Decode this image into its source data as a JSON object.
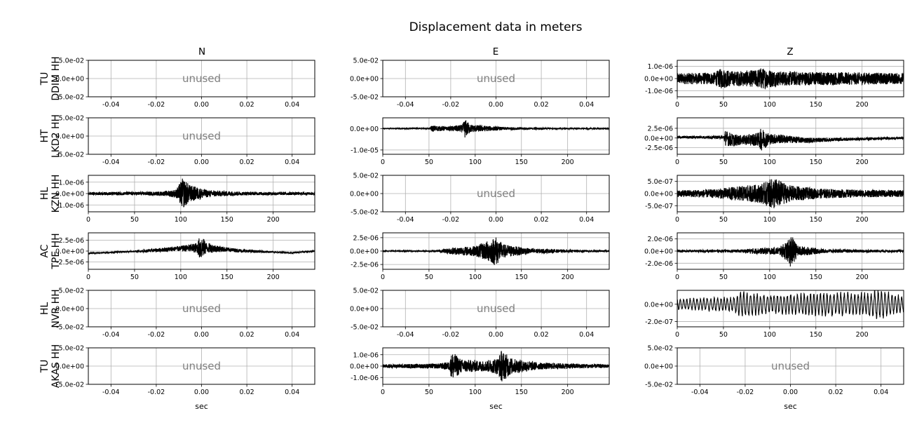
{
  "title": "Displacement data in meters",
  "columns": [
    "N",
    "E",
    "Z"
  ],
  "xlabel": "sec",
  "unused_label": "unused",
  "colors": {
    "trace": "#000000",
    "grid": "#b0b0b0",
    "unused_text": "#808080"
  },
  "chart_data": {
    "type": "line",
    "title": "Displacement data in meters",
    "grid": true,
    "rows": [
      {
        "network": "TU",
        "station": "DDIM HH"
      },
      {
        "network": "HT",
        "station": "LKD2 HH"
      },
      {
        "network": "HL",
        "station": "KZN HH"
      },
      {
        "network": "AC",
        "station": "TPE HH"
      },
      {
        "network": "HL",
        "station": "NVR HH"
      },
      {
        "network": "TU",
        "station": "AKAS HH"
      }
    ],
    "panels": [
      {
        "row": 0,
        "col": "N",
        "unused": true,
        "xlim": [
          -0.05,
          0.05
        ],
        "xticks": [
          "-0.04",
          "-0.02",
          "0.00",
          "0.02",
          "0.04"
        ],
        "ylim": [
          -0.05,
          0.05
        ],
        "yticks": [
          "5.0e-02",
          "0.0e+00",
          "-5.0e-02"
        ]
      },
      {
        "row": 0,
        "col": "E",
        "unused": true,
        "xlim": [
          -0.05,
          0.05
        ],
        "xticks": [
          "-0.04",
          "-0.02",
          "0.00",
          "0.02",
          "0.04"
        ],
        "ylim": [
          -0.05,
          0.05
        ],
        "yticks": [
          "5.0e-02",
          "0.0e+00",
          "-5.0e-02"
        ]
      },
      {
        "row": 0,
        "col": "Z",
        "unused": false,
        "xlim": [
          0,
          245
        ],
        "xticks": [
          "0",
          "50",
          "100",
          "150",
          "200"
        ],
        "ylim": [
          -1.5e-06,
          1.5e-06
        ],
        "yticks": [
          "1.0e-06",
          "0.0e+00",
          "-1.0e-06"
        ],
        "envelope": [
          [
            0,
            0.45
          ],
          [
            40,
            0.5
          ],
          [
            48,
            0.85
          ],
          [
            60,
            0.6
          ],
          [
            85,
            0.7
          ],
          [
            90,
            0.9
          ],
          [
            110,
            0.6
          ],
          [
            150,
            0.55
          ],
          [
            200,
            0.5
          ],
          [
            245,
            0.45
          ]
        ],
        "amplitude": 1e-06,
        "trend": []
      },
      {
        "row": 1,
        "col": "N",
        "unused": true,
        "xlim": [
          -0.05,
          0.05
        ],
        "xticks": [
          "-0.04",
          "-0.02",
          "0.00",
          "0.02",
          "0.04"
        ],
        "ylim": [
          -0.05,
          0.05
        ],
        "yticks": [
          "5.0e-02",
          "0.0e+00",
          "-5.0e-02"
        ]
      },
      {
        "row": 1,
        "col": "E",
        "unused": false,
        "xlim": [
          0,
          245
        ],
        "xticks": [
          "0",
          "50",
          "100",
          "150",
          "200"
        ],
        "ylim": [
          -1.2e-05,
          5e-06
        ],
        "yticks": [
          "0.0e+00",
          "-1.0e-05"
        ],
        "envelope": [
          [
            0,
            0.03
          ],
          [
            51,
            0.04
          ],
          [
            53,
            0.25
          ],
          [
            70,
            0.15
          ],
          [
            86,
            0.3
          ],
          [
            89,
            0.75
          ],
          [
            95,
            0.3
          ],
          [
            130,
            0.12
          ],
          [
            180,
            0.06
          ],
          [
            245,
            0.04
          ]
        ],
        "amplitude": 6e-06,
        "trend": []
      },
      {
        "row": 1,
        "col": "Z",
        "unused": false,
        "xlim": [
          0,
          245
        ],
        "xticks": [
          "0",
          "50",
          "100",
          "150",
          "200"
        ],
        "ylim": [
          -4.2e-06,
          5.2e-06
        ],
        "yticks": [
          "2.5e-06",
          "0.0e+00",
          "-2.5e-06"
        ],
        "envelope": [
          [
            0,
            0.08
          ],
          [
            50,
            0.1
          ],
          [
            52,
            0.5
          ],
          [
            70,
            0.3
          ],
          [
            88,
            0.45
          ],
          [
            91,
            0.75
          ],
          [
            100,
            0.35
          ],
          [
            130,
            0.2
          ],
          [
            170,
            0.1
          ],
          [
            245,
            0.07
          ]
        ],
        "amplitude": 4e-06,
        "trend": [
          [
            0,
            2e-07
          ],
          [
            50,
            2e-07
          ],
          [
            60,
            -6e-07
          ],
          [
            110,
            -2e-07
          ],
          [
            140,
            -6e-07
          ],
          [
            245,
            0
          ]
        ]
      },
      {
        "row": 2,
        "col": "N",
        "unused": false,
        "xlim": [
          0,
          245
        ],
        "xticks": [
          "0",
          "50",
          "100",
          "150",
          "200"
        ],
        "ylim": [
          -1.6e-06,
          1.6e-06
        ],
        "yticks": [
          "1.0e-06",
          "0.0e+00",
          "-1.0e-06"
        ],
        "envelope": [
          [
            0,
            0.08
          ],
          [
            80,
            0.12
          ],
          [
            95,
            0.25
          ],
          [
            102,
            0.9
          ],
          [
            110,
            0.5
          ],
          [
            130,
            0.2
          ],
          [
            170,
            0.1
          ],
          [
            245,
            0.08
          ]
        ],
        "amplitude": 1.5e-06,
        "trend": []
      },
      {
        "row": 2,
        "col": "E",
        "unused": true,
        "xlim": [
          -0.05,
          0.05
        ],
        "xticks": [
          "-0.04",
          "-0.02",
          "0.00",
          "0.02",
          "0.04"
        ],
        "ylim": [
          -0.05,
          0.05
        ],
        "yticks": [
          "5.0e-02",
          "0.0e+00",
          "-5.0e-02"
        ]
      },
      {
        "row": 2,
        "col": "Z",
        "unused": false,
        "xlim": [
          0,
          245
        ],
        "xticks": [
          "0",
          "50",
          "100",
          "150",
          "200"
        ],
        "ylim": [
          -7.5e-07,
          7.5e-07
        ],
        "yticks": [
          "5.0e-07",
          "0.0e+00",
          "-5.0e-07"
        ],
        "envelope": [
          [
            0,
            0.2
          ],
          [
            40,
            0.25
          ],
          [
            60,
            0.4
          ],
          [
            90,
            0.55
          ],
          [
            105,
            0.95
          ],
          [
            120,
            0.5
          ],
          [
            150,
            0.3
          ],
          [
            200,
            0.22
          ],
          [
            245,
            0.2
          ]
        ],
        "amplitude": 7e-07,
        "trend": []
      },
      {
        "row": 3,
        "col": "N",
        "unused": false,
        "xlim": [
          0,
          245
        ],
        "xticks": [
          "0",
          "50",
          "100",
          "150",
          "200"
        ],
        "ylim": [
          -4.2e-06,
          4.2e-06
        ],
        "yticks": [
          "2.5e-06",
          "0.0e+00",
          "-2.5e-06"
        ],
        "envelope": [
          [
            0,
            0.03
          ],
          [
            50,
            0.05
          ],
          [
            70,
            0.1
          ],
          [
            100,
            0.15
          ],
          [
            118,
            0.3
          ],
          [
            121,
            0.75
          ],
          [
            128,
            0.3
          ],
          [
            150,
            0.12
          ],
          [
            200,
            0.05
          ],
          [
            245,
            0.03
          ]
        ],
        "amplitude": 4e-06,
        "trend": [
          [
            0,
            -5e-07
          ],
          [
            60,
            0
          ],
          [
            100,
            6e-07
          ],
          [
            125,
            8e-07
          ],
          [
            170,
            0
          ],
          [
            220,
            -4e-07
          ],
          [
            245,
            0
          ]
        ]
      },
      {
        "row": 3,
        "col": "E",
        "unused": false,
        "xlim": [
          0,
          245
        ],
        "xticks": [
          "0",
          "50",
          "100",
          "150",
          "200"
        ],
        "ylim": [
          -3.4e-06,
          3.4e-06
        ],
        "yticks": [
          "2.5e-06",
          "0.0e+00",
          "-2.5e-06"
        ],
        "envelope": [
          [
            0,
            0.03
          ],
          [
            60,
            0.05
          ],
          [
            75,
            0.2
          ],
          [
            100,
            0.3
          ],
          [
            118,
            0.7
          ],
          [
            122,
            0.9
          ],
          [
            130,
            0.4
          ],
          [
            160,
            0.15
          ],
          [
            200,
            0.08
          ],
          [
            245,
            0.05
          ]
        ],
        "amplitude": 3.2e-06,
        "trend": []
      },
      {
        "row": 3,
        "col": "Z",
        "unused": false,
        "xlim": [
          0,
          245
        ],
        "xticks": [
          "0",
          "50",
          "100",
          "150",
          "200"
        ],
        "ylim": [
          -3e-06,
          3e-06
        ],
        "yticks": [
          "2.0e-06",
          "0.0e+00",
          "-2.0e-06"
        ],
        "envelope": [
          [
            0,
            0.06
          ],
          [
            70,
            0.08
          ],
          [
            80,
            0.15
          ],
          [
            110,
            0.2
          ],
          [
            120,
            0.6
          ],
          [
            123,
            0.95
          ],
          [
            130,
            0.3
          ],
          [
            160,
            0.1
          ],
          [
            245,
            0.06
          ]
        ],
        "amplitude": 3e-06,
        "trend": []
      },
      {
        "row": 4,
        "col": "N",
        "unused": true,
        "xlim": [
          -0.05,
          0.05
        ],
        "xticks": [
          "-0.04",
          "-0.02",
          "0.00",
          "0.02",
          "0.04"
        ],
        "ylim": [
          -0.05,
          0.05
        ],
        "yticks": [
          "5.0e-02",
          "0.0e+00",
          "-5.0e-02"
        ]
      },
      {
        "row": 4,
        "col": "E",
        "unused": true,
        "xlim": [
          -0.05,
          0.05
        ],
        "xticks": [
          "-0.04",
          "-0.02",
          "0.00",
          "0.02",
          "0.04"
        ],
        "ylim": [
          -0.05,
          0.05
        ],
        "yticks": [
          "5.0e-02",
          "0.0e+00",
          "-5.0e-02"
        ]
      },
      {
        "row": 4,
        "col": "Z",
        "unused": false,
        "xlim": [
          0,
          245
        ],
        "xticks": [
          "0",
          "50",
          "100",
          "150",
          "200"
        ],
        "ylim": [
          -2.6e-07,
          1.6e-07
        ],
        "yticks": [
          "0.0e+00",
          "-2.0e-07"
        ],
        "envelope": [
          [
            0,
            0.35
          ],
          [
            60,
            0.45
          ],
          [
            68,
            0.8
          ],
          [
            100,
            0.6
          ],
          [
            170,
            0.75
          ],
          [
            200,
            0.7
          ],
          [
            220,
            0.9
          ],
          [
            245,
            0.5
          ]
        ],
        "amplitude": 2e-07,
        "trend": [],
        "lowfreq": true
      },
      {
        "row": 5,
        "col": "N",
        "unused": true,
        "xlim": [
          -0.05,
          0.05
        ],
        "xticks": [
          "-0.04",
          "-0.02",
          "0.00",
          "0.02",
          "0.04"
        ],
        "ylim": [
          -0.05,
          0.05
        ],
        "yticks": [
          "5.0e-02",
          "0.0e+00",
          "-5.0e-02"
        ]
      },
      {
        "row": 5,
        "col": "E",
        "unused": false,
        "xlim": [
          0,
          245
        ],
        "xticks": [
          "0",
          "50",
          "100",
          "150",
          "200"
        ],
        "ylim": [
          -1.6e-06,
          1.6e-06
        ],
        "yticks": [
          "1.0e-06",
          "0.0e+00",
          "-1.0e-06"
        ],
        "envelope": [
          [
            0,
            0.1
          ],
          [
            60,
            0.15
          ],
          [
            72,
            0.25
          ],
          [
            75,
            0.85
          ],
          [
            85,
            0.4
          ],
          [
            110,
            0.3
          ],
          [
            125,
            0.5
          ],
          [
            128,
            0.95
          ],
          [
            140,
            0.45
          ],
          [
            170,
            0.2
          ],
          [
            245,
            0.1
          ]
        ],
        "amplitude": 1.5e-06,
        "trend": []
      },
      {
        "row": 5,
        "col": "Z",
        "unused": true,
        "xlim": [
          -0.05,
          0.05
        ],
        "xticks": [
          "-0.04",
          "-0.02",
          "0.00",
          "0.02",
          "0.04"
        ],
        "ylim": [
          -0.05,
          0.05
        ],
        "yticks": [
          "5.0e-02",
          "0.0e+00",
          "-5.0e-02"
        ]
      }
    ]
  }
}
